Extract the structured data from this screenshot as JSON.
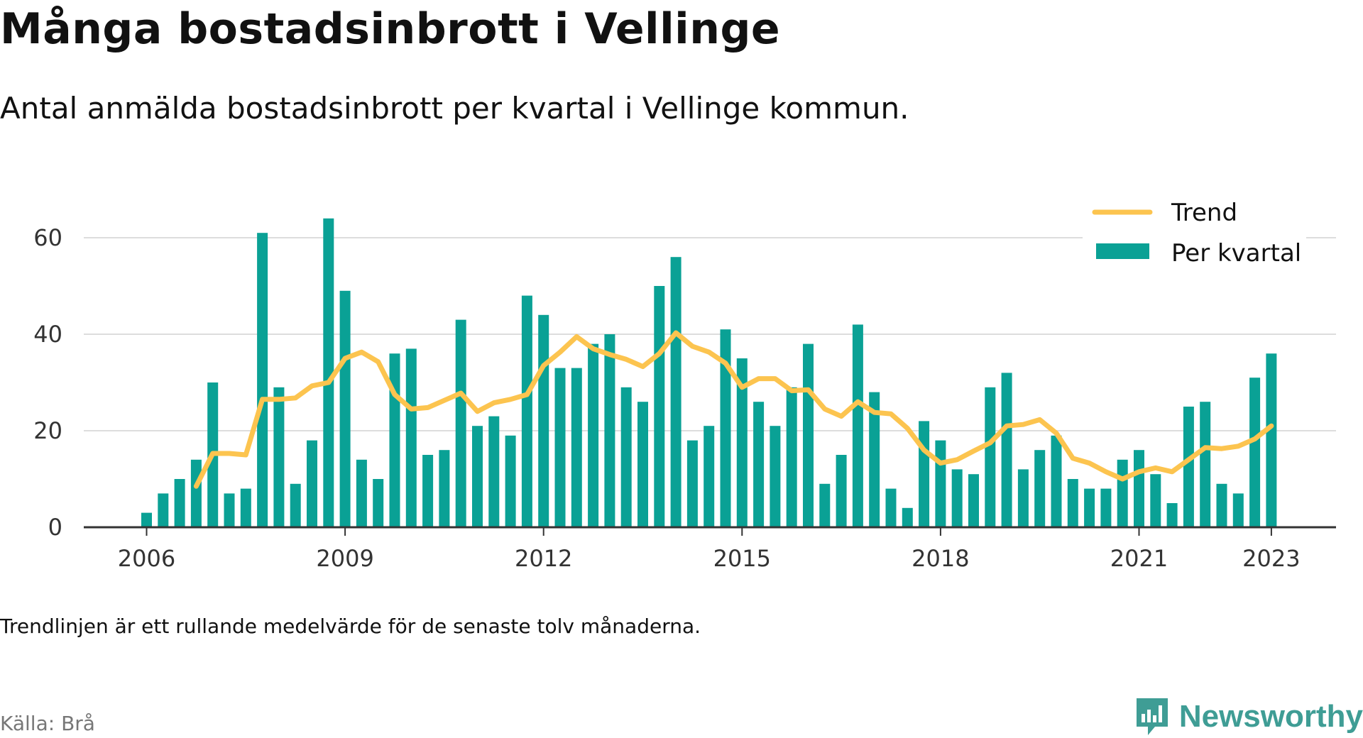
{
  "chart_data": {
    "type": "bar",
    "title": "Många bostadsinbrott i Vellinge",
    "subtitle": "Antal anmälda bostadsinbrott per kvartal i Vellinge kommun.",
    "note": "Trendlinjen är ett rullande medelvärde för de senaste tolv månaderna.",
    "source": "Källa: Brå",
    "brand": "Newsworthy",
    "x_tick_labels": [
      "2006",
      "2009",
      "2012",
      "2015",
      "2018",
      "2021",
      "2023"
    ],
    "y_ticks": [
      0,
      20,
      40,
      60
    ],
    "ylim": [
      0,
      65
    ],
    "grid": true,
    "legend_position": "top-right",
    "colors": {
      "bars": "#0aa195",
      "trend": "#fcc44f",
      "grid": "#dddddd",
      "axis": "#333333"
    },
    "first_quarter": "2006 Q1",
    "last_quarter": "2023 Q1",
    "series": [
      {
        "name": "Per kvartal",
        "kind": "bar",
        "values": [
          3,
          7,
          10,
          14,
          30,
          7,
          8,
          61,
          29,
          9,
          18,
          64,
          49,
          14,
          10,
          36,
          37,
          15,
          16,
          43,
          21,
          23,
          19,
          48,
          44,
          33,
          33,
          38,
          40,
          29,
          26,
          50,
          56,
          18,
          21,
          41,
          35,
          26,
          21,
          29,
          38,
          9,
          15,
          42,
          28,
          8,
          4,
          22,
          18,
          12,
          11,
          29,
          32,
          12,
          16,
          19,
          10,
          8,
          8,
          14,
          16,
          11,
          5,
          25,
          26,
          9,
          7,
          31,
          36
        ]
      },
      {
        "name": "Trend",
        "kind": "line",
        "start_index": 3,
        "values": [
          8.5,
          15.3,
          15.3,
          15.0,
          26.5,
          26.5,
          26.8,
          29.3,
          30.0,
          35.0,
          36.3,
          34.3,
          27.5,
          24.5,
          24.8,
          26.3,
          27.8,
          24.0,
          25.8,
          26.5,
          27.5,
          33.5,
          36.3,
          39.5,
          37.0,
          35.8,
          34.8,
          33.3,
          36.0,
          40.3,
          37.5,
          36.3,
          34.0,
          29.0,
          30.8,
          30.8,
          28.3,
          28.5,
          24.5,
          23.0,
          26.0,
          23.8,
          23.5,
          20.5,
          16.0,
          13.3,
          14.0,
          15.8,
          17.5,
          21.0,
          21.3,
          22.3,
          19.5,
          14.3,
          13.3,
          11.5,
          10.0,
          11.5,
          12.3,
          11.5,
          14.0,
          16.5,
          16.3,
          16.8,
          18.3,
          21.0
        ]
      }
    ]
  }
}
